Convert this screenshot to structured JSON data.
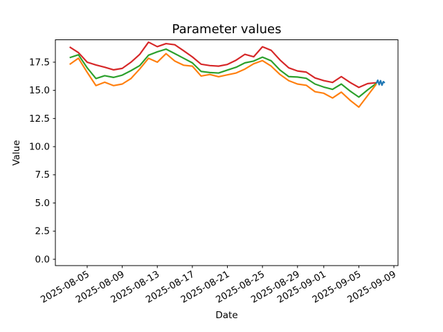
{
  "chart_data": {
    "type": "line",
    "title": "Parameter values",
    "xlabel": "Date",
    "ylabel": "Value",
    "grid": false,
    "legend": null,
    "xlim_days": [
      -1.63,
      37.47
    ],
    "ylim": [
      -0.56,
      19.49
    ],
    "x_tick_labels": [
      "2025-08-05",
      "2025-08-09",
      "2025-08-13",
      "2025-08-17",
      "2025-08-21",
      "2025-08-25",
      "2025-08-29",
      "2025-09-01",
      "2025-09-05",
      "2025-09-09"
    ],
    "y_ticks": [
      0.0,
      2.5,
      5.0,
      7.5,
      10.0,
      12.5,
      15.0,
      17.5
    ],
    "y_tick_labels": [
      "0.0",
      "2.5",
      "5.0",
      "7.5",
      "10.0",
      "12.5",
      "15.0",
      "17.5"
    ],
    "dates": [
      "2025-08-03",
      "2025-08-04",
      "2025-08-05",
      "2025-08-06",
      "2025-08-07",
      "2025-08-08",
      "2025-08-09",
      "2025-08-10",
      "2025-08-11",
      "2025-08-12",
      "2025-08-13",
      "2025-08-14",
      "2025-08-15",
      "2025-08-16",
      "2025-08-17",
      "2025-08-18",
      "2025-08-19",
      "2025-08-20",
      "2025-08-21",
      "2025-08-22",
      "2025-08-23",
      "2025-08-24",
      "2025-08-25",
      "2025-08-26",
      "2025-08-27",
      "2025-08-28",
      "2025-08-29",
      "2025-08-30",
      "2025-08-31",
      "2025-09-01",
      "2025-09-02",
      "2025-09-03",
      "2025-09-04",
      "2025-09-05",
      "2025-09-06",
      "2025-09-07"
    ],
    "series": [
      {
        "name": "series-red",
        "color": "#d62728",
        "values": [
          18.85,
          18.35,
          17.5,
          17.25,
          17.05,
          16.82,
          16.95,
          17.5,
          18.2,
          19.28,
          18.88,
          19.15,
          19.05,
          18.52,
          17.97,
          17.32,
          17.2,
          17.15,
          17.3,
          17.68,
          18.2,
          17.98,
          18.87,
          18.55,
          17.7,
          17.0,
          16.72,
          16.62,
          16.1,
          15.86,
          15.7,
          16.22,
          15.7,
          15.26,
          15.6,
          15.68
        ]
      },
      {
        "name": "series-green",
        "color": "#2ca02c",
        "values": [
          17.9,
          18.16,
          17.0,
          16.05,
          16.3,
          16.15,
          16.35,
          16.75,
          17.2,
          18.12,
          18.42,
          18.66,
          18.26,
          17.85,
          17.44,
          16.68,
          16.58,
          16.54,
          16.8,
          17.05,
          17.44,
          17.6,
          17.95,
          17.62,
          16.8,
          16.22,
          16.18,
          16.07,
          15.56,
          15.29,
          15.09,
          15.56,
          14.94,
          14.4,
          15.04,
          15.62
        ]
      },
      {
        "name": "series-orange",
        "color": "#ff7f0e",
        "values": [
          17.3,
          17.85,
          16.6,
          15.42,
          15.72,
          15.42,
          15.56,
          16.05,
          16.9,
          17.85,
          17.5,
          18.26,
          17.6,
          17.23,
          17.15,
          16.27,
          16.41,
          16.21,
          16.38,
          16.54,
          16.89,
          17.36,
          17.64,
          17.15,
          16.41,
          15.86,
          15.56,
          15.45,
          14.88,
          14.74,
          14.32,
          14.84,
          14.12,
          13.51,
          14.53,
          15.56
        ]
      }
    ],
    "blue_segment": {
      "name": "series-blue",
      "color": "#1f77b4",
      "start_date": "2025-09-07",
      "day_offsets": [
        35.0,
        35.16,
        35.32,
        35.48,
        35.64,
        35.8,
        35.96
      ],
      "values": [
        15.62,
        15.9,
        15.5,
        15.86,
        15.46,
        15.77,
        15.66
      ]
    }
  }
}
